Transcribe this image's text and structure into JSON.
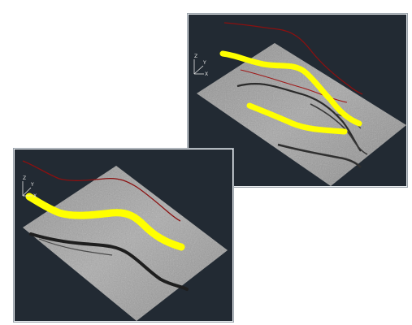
{
  "views": [
    {
      "id": "view-upper-right",
      "axis_labels": {
        "z": "Z",
        "y": "Y",
        "x": "X"
      }
    },
    {
      "id": "view-lower-left",
      "axis_labels": {
        "z": "Z",
        "y": "Y",
        "x": "X"
      }
    }
  ],
  "colors": {
    "background": "#ffffff",
    "viewport": "#222a33",
    "terrain": "#9a9a9a",
    "crack_highlight": "#ffff00",
    "profile_line": "#8b1010",
    "axis": "#e6e6e6"
  },
  "icons": {
    "ucs_axes": "ucs-axis-icon"
  }
}
